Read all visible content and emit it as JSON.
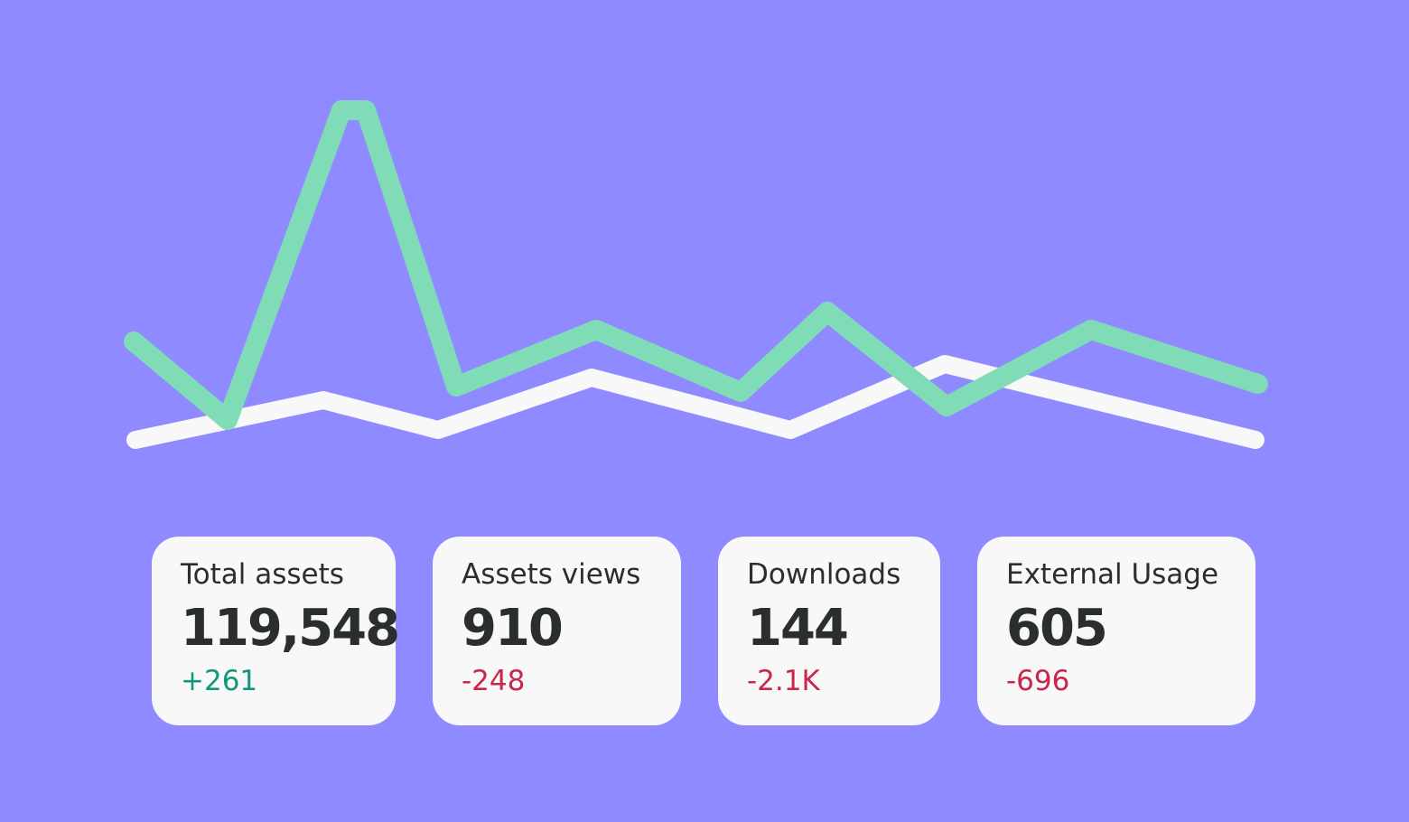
{
  "cards": [
    {
      "title": "Total assets",
      "value": "119,548",
      "delta": "+261",
      "color": "#13977a"
    },
    {
      "title": "Assets views",
      "value": "910",
      "delta": "-248",
      "color": "#c9264a"
    },
    {
      "title": "Downloads",
      "value": "144",
      "delta": "-2.1K",
      "color": "#c9264a"
    },
    {
      "title": "External Usage",
      "value": "605",
      "delta": "-696",
      "color": "#c9264a"
    }
  ]
}
